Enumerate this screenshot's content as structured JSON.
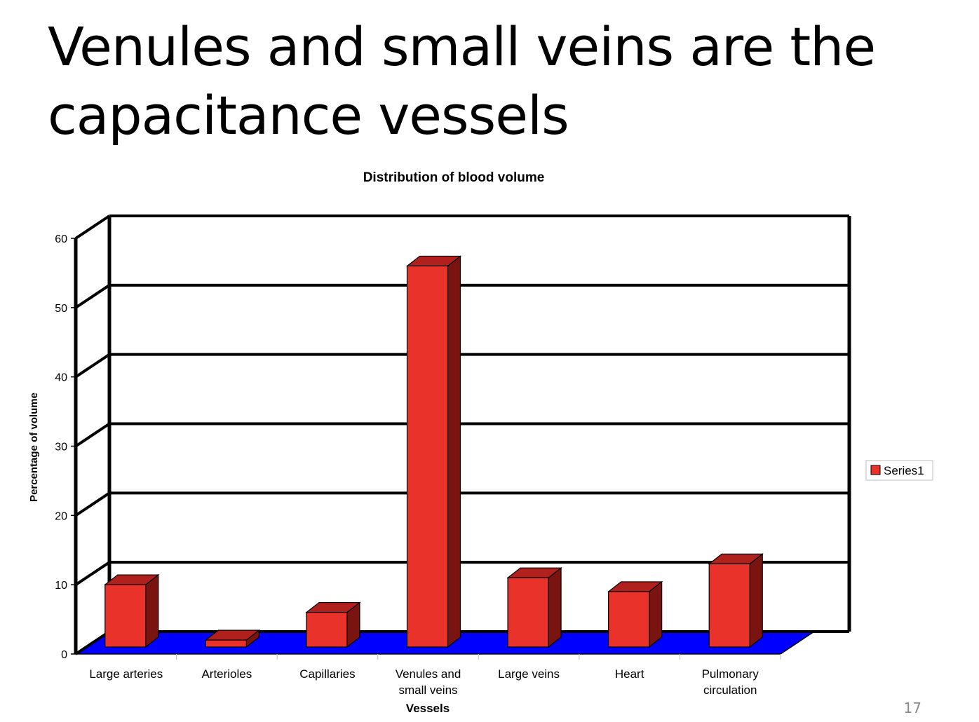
{
  "slide": {
    "title_line1": "Venules and small veins are the",
    "title_emph": "capacitance",
    "title_rest": " vessels",
    "page_number": "17"
  },
  "chart_data": {
    "type": "bar",
    "style": "3d",
    "title": "Distribution of blood volume",
    "xlabel": "Vessels",
    "ylabel": "Percentage of volume",
    "ylim": [
      0,
      60
    ],
    "yticks": [
      "0",
      "10",
      "20",
      "30",
      "40",
      "50",
      "60"
    ],
    "categories": [
      "Large arteries",
      "Arterioles",
      "Capillaries",
      "Venules and small veins",
      "Large veins",
      "Heart",
      "Pulmonary circulation"
    ],
    "category_lines": [
      [
        "Large arteries"
      ],
      [
        "Arterioles"
      ],
      [
        "Capillaries"
      ],
      [
        "Venules and",
        "small veins"
      ],
      [
        "Large veins"
      ],
      [
        "Heart"
      ],
      [
        "Pulmonary",
        "circulation"
      ]
    ],
    "series": [
      {
        "name": "Series1",
        "values": [
          9,
          1,
          5,
          55,
          10,
          8,
          12
        ]
      }
    ],
    "legend": {
      "position": "right",
      "entries": [
        "Series1"
      ]
    },
    "grid": true,
    "colors": {
      "bar_front": "#e8322a",
      "bar_top": "#b0201c",
      "bar_side": "#7a1410",
      "floor": "#0000ff",
      "grid": "#000000"
    }
  }
}
